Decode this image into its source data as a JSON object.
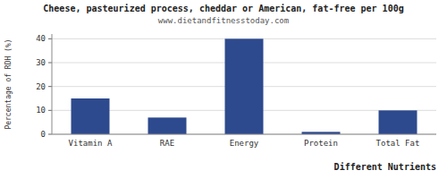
{
  "chart_data": {
    "type": "bar",
    "title": "Cheese, pasteurized process, cheddar or American, fat-free per 100g",
    "subtitle": "www.dietandfitnesstoday.com",
    "categories": [
      "Vitamin A",
      "RAE",
      "Energy",
      "Protein",
      "Total Fat"
    ],
    "values": [
      15,
      7,
      40,
      1,
      10
    ],
    "color": "#2e4a8e",
    "xlabel": "Different Nutrients",
    "ylabel": "Percentage of RDH (%)",
    "ylim": [
      0,
      42
    ],
    "yticks": [
      0,
      10,
      20,
      30,
      40
    ],
    "grid": true
  }
}
